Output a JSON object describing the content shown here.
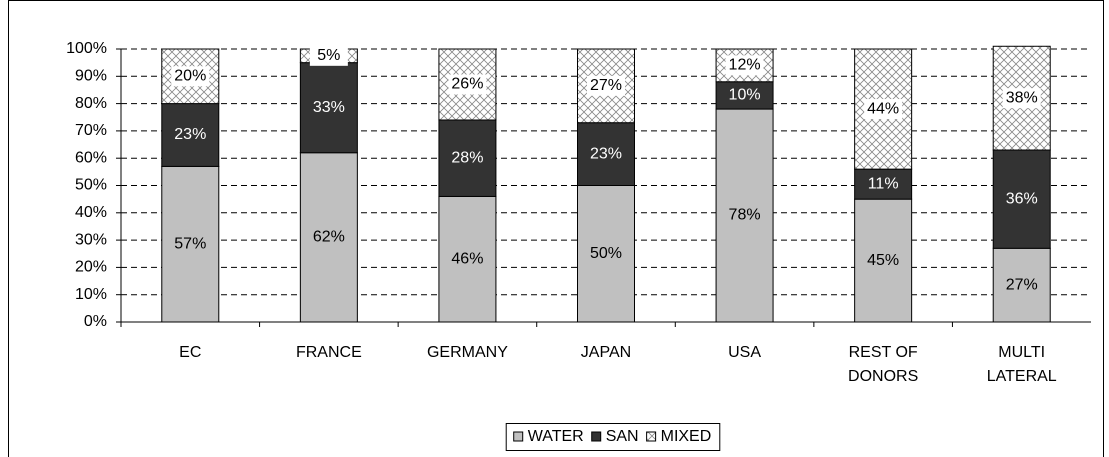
{
  "chart_data": {
    "type": "stacked_bar",
    "categories": [
      "EC",
      "FRANCE",
      "GERMANY",
      "JAPAN",
      "USA",
      "REST OF DONORS",
      "MULTI LATERAL"
    ],
    "series": [
      {
        "name": "WATER",
        "color": "#c0c0c0",
        "values": [
          57,
          62,
          46,
          50,
          78,
          45,
          27
        ],
        "value_labels": [
          "57%",
          "62%",
          "46%",
          "50%",
          "78%",
          "45%",
          "27%"
        ]
      },
      {
        "name": "SAN",
        "color": "#333333",
        "values": [
          23,
          33,
          28,
          23,
          10,
          11,
          36
        ],
        "value_labels": [
          "23%",
          "33%",
          "28%",
          "23%",
          "10%",
          "11%",
          "36%"
        ]
      },
      {
        "name": "MIXED",
        "color": "crosshatch",
        "values": [
          20,
          5,
          26,
          27,
          12,
          44,
          38
        ],
        "value_labels": [
          "20%",
          "5%",
          "26%",
          "27%",
          "12%",
          "44%",
          "38%"
        ]
      }
    ],
    "ylim": [
      0,
      100
    ],
    "yticks": [
      {
        "value": 0,
        "label": "0%"
      },
      {
        "value": 10,
        "label": "10%"
      },
      {
        "value": 20,
        "label": "20%"
      },
      {
        "value": 30,
        "label": "30%"
      },
      {
        "value": 40,
        "label": "40%"
      },
      {
        "value": 50,
        "label": "50%"
      },
      {
        "value": 60,
        "label": "60%"
      },
      {
        "value": 70,
        "label": "70%"
      },
      {
        "value": 80,
        "label": "80%"
      },
      {
        "value": 90,
        "label": "90%"
      },
      {
        "value": 100,
        "label": "100%"
      }
    ],
    "grid": true,
    "legend": "bottom"
  }
}
